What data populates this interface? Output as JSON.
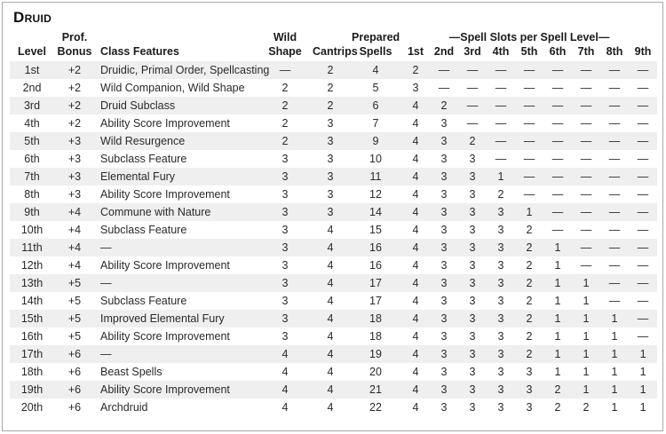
{
  "title": "Druid",
  "table": {
    "header_groups": {
      "prof": "Prof.",
      "wild": "Wild",
      "prepared": "Prepared",
      "spell_slots": "—Spell Slots per Spell Level—"
    },
    "columns": [
      "Level",
      "Bonus",
      "Class Features",
      "Shape",
      "Cantrips",
      "Spells"
    ],
    "slot_columns": [
      "1st",
      "2nd",
      "3rd",
      "4th",
      "5th",
      "6th",
      "7th",
      "8th",
      "9th"
    ],
    "empty_marker": "—",
    "colors": {
      "row_stripe": "#efefef",
      "border": "#a9a9a9",
      "text": "#2a2a2a"
    },
    "rows": [
      {
        "level": "1st",
        "prof_bonus": "+2",
        "class_features": "Druidic, Primal Order, Spellcasting",
        "wild_shape": "—",
        "cantrips": "2",
        "prepared_spells": "4",
        "slots": [
          "2",
          "—",
          "—",
          "—",
          "—",
          "—",
          "—",
          "—",
          "—"
        ]
      },
      {
        "level": "2nd",
        "prof_bonus": "+2",
        "class_features": "Wild Companion, Wild Shape",
        "wild_shape": "2",
        "cantrips": "2",
        "prepared_spells": "5",
        "slots": [
          "3",
          "—",
          "—",
          "—",
          "—",
          "—",
          "—",
          "—",
          "—"
        ]
      },
      {
        "level": "3rd",
        "prof_bonus": "+2",
        "class_features": "Druid Subclass",
        "wild_shape": "2",
        "cantrips": "2",
        "prepared_spells": "6",
        "slots": [
          "4",
          "2",
          "—",
          "—",
          "—",
          "—",
          "—",
          "—",
          "—"
        ]
      },
      {
        "level": "4th",
        "prof_bonus": "+2",
        "class_features": "Ability Score Improvement",
        "wild_shape": "2",
        "cantrips": "3",
        "prepared_spells": "7",
        "slots": [
          "4",
          "3",
          "—",
          "—",
          "—",
          "—",
          "—",
          "—",
          "—"
        ]
      },
      {
        "level": "5th",
        "prof_bonus": "+3",
        "class_features": "Wild Resurgence",
        "wild_shape": "2",
        "cantrips": "3",
        "prepared_spells": "9",
        "slots": [
          "4",
          "3",
          "2",
          "—",
          "—",
          "—",
          "—",
          "—",
          "—"
        ]
      },
      {
        "level": "6th",
        "prof_bonus": "+3",
        "class_features": "Subclass Feature",
        "wild_shape": "3",
        "cantrips": "3",
        "prepared_spells": "10",
        "slots": [
          "4",
          "3",
          "3",
          "—",
          "—",
          "—",
          "—",
          "—",
          "—"
        ]
      },
      {
        "level": "7th",
        "prof_bonus": "+3",
        "class_features": "Elemental Fury",
        "wild_shape": "3",
        "cantrips": "3",
        "prepared_spells": "11",
        "slots": [
          "4",
          "3",
          "3",
          "1",
          "—",
          "—",
          "—",
          "—",
          "—"
        ]
      },
      {
        "level": "8th",
        "prof_bonus": "+3",
        "class_features": "Ability Score Improvement",
        "wild_shape": "3",
        "cantrips": "3",
        "prepared_spells": "12",
        "slots": [
          "4",
          "3",
          "3",
          "2",
          "—",
          "—",
          "—",
          "—",
          "—"
        ]
      },
      {
        "level": "9th",
        "prof_bonus": "+4",
        "class_features": "Commune with Nature",
        "wild_shape": "3",
        "cantrips": "3",
        "prepared_spells": "14",
        "slots": [
          "4",
          "3",
          "3",
          "3",
          "1",
          "—",
          "—",
          "—",
          "—"
        ]
      },
      {
        "level": "10th",
        "prof_bonus": "+4",
        "class_features": "Subclass Feature",
        "wild_shape": "3",
        "cantrips": "4",
        "prepared_spells": "15",
        "slots": [
          "4",
          "3",
          "3",
          "3",
          "2",
          "—",
          "—",
          "—",
          "—"
        ]
      },
      {
        "level": "11th",
        "prof_bonus": "+4",
        "class_features": "—",
        "wild_shape": "3",
        "cantrips": "4",
        "prepared_spells": "16",
        "slots": [
          "4",
          "3",
          "3",
          "3",
          "2",
          "1",
          "—",
          "—",
          "—"
        ]
      },
      {
        "level": "12th",
        "prof_bonus": "+4",
        "class_features": "Ability Score Improvement",
        "wild_shape": "3",
        "cantrips": "4",
        "prepared_spells": "16",
        "slots": [
          "4",
          "3",
          "3",
          "3",
          "2",
          "1",
          "—",
          "—",
          "—"
        ]
      },
      {
        "level": "13th",
        "prof_bonus": "+5",
        "class_features": "—",
        "wild_shape": "3",
        "cantrips": "4",
        "prepared_spells": "17",
        "slots": [
          "4",
          "3",
          "3",
          "3",
          "2",
          "1",
          "1",
          "—",
          "—"
        ]
      },
      {
        "level": "14th",
        "prof_bonus": "+5",
        "class_features": "Subclass Feature",
        "wild_shape": "3",
        "cantrips": "4",
        "prepared_spells": "17",
        "slots": [
          "4",
          "3",
          "3",
          "3",
          "2",
          "1",
          "1",
          "—",
          "—"
        ]
      },
      {
        "level": "15th",
        "prof_bonus": "+5",
        "class_features": "Improved Elemental Fury",
        "wild_shape": "3",
        "cantrips": "4",
        "prepared_spells": "18",
        "slots": [
          "4",
          "3",
          "3",
          "3",
          "2",
          "1",
          "1",
          "1",
          "—"
        ]
      },
      {
        "level": "16th",
        "prof_bonus": "+5",
        "class_features": "Ability Score Improvement",
        "wild_shape": "3",
        "cantrips": "4",
        "prepared_spells": "18",
        "slots": [
          "4",
          "3",
          "3",
          "3",
          "2",
          "1",
          "1",
          "1",
          "—"
        ]
      },
      {
        "level": "17th",
        "prof_bonus": "+6",
        "class_features": "—",
        "wild_shape": "4",
        "cantrips": "4",
        "prepared_spells": "19",
        "slots": [
          "4",
          "3",
          "3",
          "3",
          "2",
          "1",
          "1",
          "1",
          "1"
        ]
      },
      {
        "level": "18th",
        "prof_bonus": "+6",
        "class_features": "Beast Spells",
        "wild_shape": "4",
        "cantrips": "4",
        "prepared_spells": "20",
        "slots": [
          "4",
          "3",
          "3",
          "3",
          "3",
          "1",
          "1",
          "1",
          "1"
        ]
      },
      {
        "level": "19th",
        "prof_bonus": "+6",
        "class_features": "Ability Score Improvement",
        "wild_shape": "4",
        "cantrips": "4",
        "prepared_spells": "21",
        "slots": [
          "4",
          "3",
          "3",
          "3",
          "3",
          "2",
          "1",
          "1",
          "1"
        ]
      },
      {
        "level": "20th",
        "prof_bonus": "+6",
        "class_features": "Archdruid",
        "wild_shape": "4",
        "cantrips": "4",
        "prepared_spells": "22",
        "slots": [
          "4",
          "3",
          "3",
          "3",
          "3",
          "2",
          "2",
          "1",
          "1"
        ]
      }
    ]
  }
}
